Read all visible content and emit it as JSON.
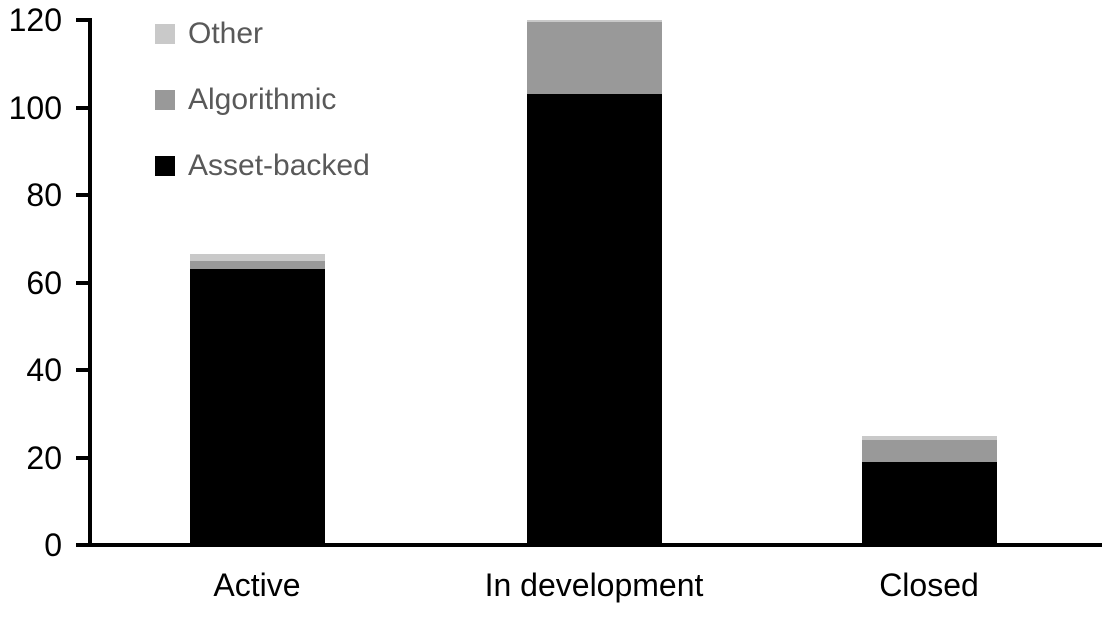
{
  "chart_data": {
    "type": "bar",
    "stacked": true,
    "title": "",
    "xlabel": "",
    "ylabel": "",
    "categories": [
      "Active",
      "In development",
      "Closed"
    ],
    "series": [
      {
        "name": "Asset-backed",
        "color": "#000000",
        "values": [
          63,
          103,
          19
        ]
      },
      {
        "name": "Algorithmic",
        "color": "#999999",
        "values": [
          2,
          16.5,
          5
        ]
      },
      {
        "name": "Other",
        "color": "#c9c9c9",
        "values": [
          1.5,
          0.5,
          1
        ]
      }
    ],
    "totals": [
      66.5,
      120,
      25
    ],
    "ylim": [
      0,
      120
    ],
    "ytick_values": [
      0,
      20,
      40,
      60,
      80,
      100,
      120
    ],
    "ytick_labels": [
      "0",
      "20",
      "40",
      "60",
      "80",
      "100",
      "120"
    ],
    "grid": false,
    "legend_position": "top-left",
    "legend_order": [
      "Other",
      "Algorithmic",
      "Asset-backed"
    ]
  },
  "colors": {
    "axis": "#000000",
    "tick_label": "#000000",
    "legend_text": "#595959",
    "background": "#ffffff"
  }
}
